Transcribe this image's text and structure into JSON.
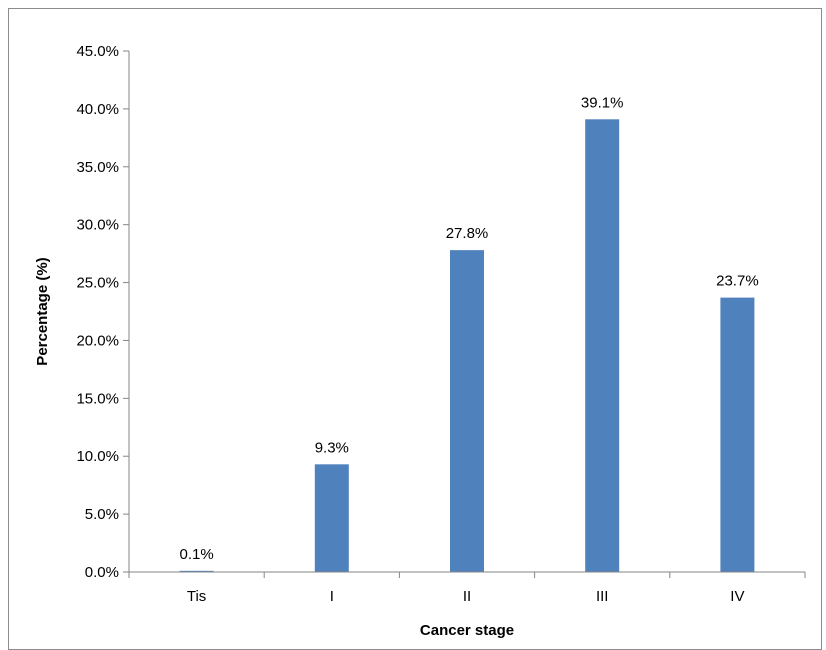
{
  "chart_data": {
    "type": "bar",
    "categories": [
      "Tis",
      "I",
      "II",
      "III",
      "IV"
    ],
    "values": [
      0.1,
      9.3,
      27.8,
      39.1,
      23.7
    ],
    "data_labels": [
      "0.1%",
      "9.3%",
      "27.8%",
      "39.1%",
      "23.7%"
    ],
    "y_ticks": [
      "0.0%",
      "5.0%",
      "10.0%",
      "15.0%",
      "20.0%",
      "25.0%",
      "30.0%",
      "35.0%",
      "40.0%",
      "45.0%"
    ],
    "ylim": [
      0,
      45
    ],
    "xlabel": "Cancer stage",
    "ylabel": "Percentage (%)",
    "grid": false,
    "legend": "none",
    "bar_color": "#4f81bd"
  }
}
